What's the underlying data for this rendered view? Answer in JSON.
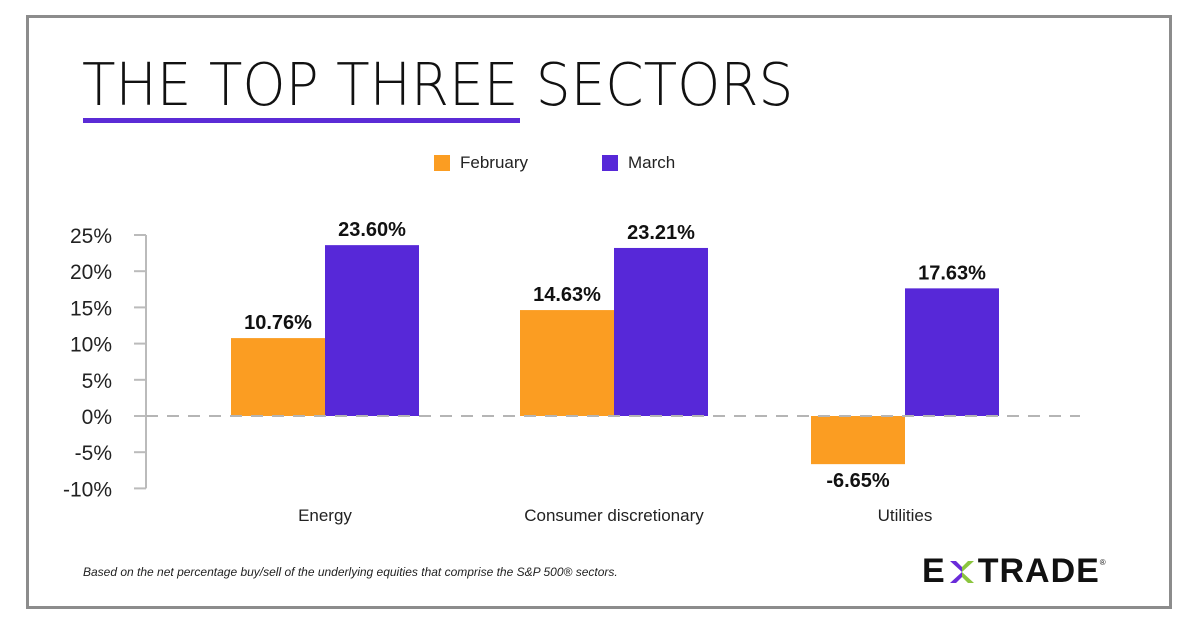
{
  "title": "THE TOP THREE SECTORS",
  "footnote": "Based on the net percentage buy/sell of the underlying equities that comprise the S&P 500® sectors.",
  "logo": "E*TRADE",
  "chart_data": {
    "type": "bar",
    "title": "",
    "xlabel": "",
    "ylabel": "",
    "categories": [
      "Energy",
      "Consumer discretionary",
      "Utilities"
    ],
    "series": [
      {
        "name": "February",
        "color": "#fb9d22",
        "values": [
          10.76,
          14.63,
          -6.65
        ],
        "labels": [
          "10.76%",
          "14.63%",
          "-6.65%"
        ]
      },
      {
        "name": "March",
        "color": "#5728d8",
        "values": [
          23.6,
          23.21,
          17.63
        ],
        "labels": [
          "23.60%",
          "23.21%",
          "17.63%"
        ]
      }
    ],
    "ylim": [
      -10,
      25
    ],
    "yticks": [
      "25%",
      "20%",
      "15%",
      "10%",
      "5%",
      "0%",
      "-5%",
      "-10%"
    ],
    "ytick_values": [
      25,
      20,
      15,
      10,
      5,
      0,
      -5,
      -10
    ],
    "zero_line": "dashed",
    "grid": false,
    "legend_position": "top-center"
  }
}
